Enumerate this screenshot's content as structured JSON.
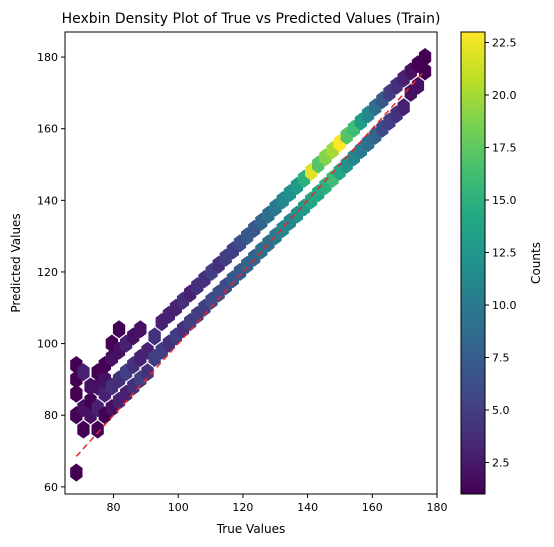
{
  "chart_data": {
    "type": "hexbin",
    "title": "Hexbin Density Plot of True vs Predicted Values (Train)",
    "xlabel": "True Values",
    "ylabel": "Predicted Values",
    "xlim": [
      65,
      180
    ],
    "ylim": [
      58,
      187
    ],
    "xticks": [
      80,
      100,
      120,
      140,
      160,
      180
    ],
    "yticks": [
      60,
      80,
      100,
      120,
      140,
      160,
      180
    ],
    "grid": false,
    "colormap": "viridis",
    "colorbar": {
      "label": "Counts",
      "range": [
        1,
        23
      ],
      "ticks": [
        "2.5",
        "5.0",
        "7.5",
        "10.0",
        "12.5",
        "15.0",
        "17.5",
        "20.0",
        "22.5"
      ],
      "tick_values": [
        2.5,
        5.0,
        7.5,
        10.0,
        12.5,
        15.0,
        17.5,
        20.0,
        22.5
      ]
    },
    "reference_line": {
      "style": "dashed",
      "color": "#e8262a",
      "x": [
        68.5,
        176
      ],
      "y": [
        68.5,
        176
      ]
    },
    "hex_size": 2.2,
    "cells": [
      [
        68.5,
        64,
        1
      ],
      [
        68.5,
        80,
        1
      ],
      [
        68.5,
        86,
        1
      ],
      [
        68.5,
        90,
        1
      ],
      [
        68.5,
        94,
        1
      ],
      [
        70.7,
        76,
        1
      ],
      [
        70.7,
        82,
        2
      ],
      [
        70.7,
        92,
        3
      ],
      [
        72.9,
        80,
        2
      ],
      [
        72.9,
        84,
        1
      ],
      [
        72.9,
        88,
        2
      ],
      [
        75.1,
        76,
        1
      ],
      [
        75.1,
        82,
        3
      ],
      [
        75.1,
        88,
        2
      ],
      [
        75.1,
        92,
        1
      ],
      [
        77.3,
        80,
        1
      ],
      [
        77.3,
        86,
        3
      ],
      [
        77.3,
        90,
        2
      ],
      [
        77.3,
        94,
        1
      ],
      [
        79.5,
        82,
        2
      ],
      [
        79.5,
        88,
        4
      ],
      [
        79.5,
        96,
        2
      ],
      [
        79.5,
        100,
        1
      ],
      [
        81.7,
        84,
        3
      ],
      [
        81.7,
        90,
        4
      ],
      [
        81.7,
        98,
        2
      ],
      [
        81.7,
        104,
        1
      ],
      [
        83.9,
        86,
        3
      ],
      [
        83.9,
        92,
        5
      ],
      [
        83.9,
        100,
        3
      ],
      [
        86.1,
        88,
        4
      ],
      [
        86.1,
        94,
        4
      ],
      [
        86.1,
        102,
        2
      ],
      [
        88.3,
        90,
        5
      ],
      [
        88.3,
        96,
        3
      ],
      [
        88.3,
        104,
        2
      ],
      [
        90.5,
        92,
        4
      ],
      [
        90.5,
        98,
        3
      ],
      [
        92.7,
        96,
        5
      ],
      [
        92.7,
        102,
        4
      ],
      [
        94.9,
        98,
        5
      ],
      [
        94.9,
        106,
        3
      ],
      [
        97.1,
        100,
        4
      ],
      [
        97.1,
        108,
        3
      ],
      [
        99.3,
        102,
        5
      ],
      [
        99.3,
        110,
        3
      ],
      [
        101.5,
        104,
        4
      ],
      [
        101.5,
        112,
        4
      ],
      [
        103.7,
        106,
        5
      ],
      [
        103.7,
        114,
        3
      ],
      [
        105.9,
        108,
        5
      ],
      [
        105.9,
        116,
        4
      ],
      [
        108.1,
        110,
        5
      ],
      [
        108.1,
        118,
        4
      ],
      [
        110.3,
        112,
        6
      ],
      [
        110.3,
        120,
        5
      ],
      [
        112.5,
        114,
        6
      ],
      [
        112.5,
        122,
        4
      ],
      [
        114.7,
        116,
        6
      ],
      [
        114.7,
        124,
        5
      ],
      [
        116.9,
        118,
        7
      ],
      [
        116.9,
        126,
        5
      ],
      [
        119.1,
        120,
        7
      ],
      [
        119.1,
        128,
        6
      ],
      [
        121.3,
        122,
        8
      ],
      [
        121.3,
        130,
        7
      ],
      [
        123.5,
        124,
        8
      ],
      [
        123.5,
        132,
        7
      ],
      [
        125.7,
        126,
        9
      ],
      [
        125.7,
        134,
        8
      ],
      [
        127.9,
        128,
        9
      ],
      [
        127.9,
        136,
        9
      ],
      [
        130.1,
        130,
        10
      ],
      [
        130.1,
        138,
        10
      ],
      [
        132.3,
        132,
        11
      ],
      [
        132.3,
        140,
        11
      ],
      [
        134.5,
        134,
        11
      ],
      [
        134.5,
        142,
        12
      ],
      [
        136.7,
        136,
        12
      ],
      [
        136.7,
        144,
        13
      ],
      [
        138.9,
        138,
        13
      ],
      [
        138.9,
        146,
        15
      ],
      [
        141.1,
        140,
        14
      ],
      [
        141.1,
        148,
        22
      ],
      [
        143.3,
        142,
        14
      ],
      [
        143.3,
        150,
        17
      ],
      [
        145.5,
        144,
        15
      ],
      [
        145.5,
        152,
        19
      ],
      [
        147.7,
        146,
        16
      ],
      [
        147.7,
        154,
        20
      ],
      [
        149.9,
        148,
        14
      ],
      [
        149.9,
        156,
        23
      ],
      [
        152.1,
        150,
        12
      ],
      [
        152.1,
        158,
        17
      ],
      [
        154.3,
        152,
        11
      ],
      [
        154.3,
        160,
        16
      ],
      [
        156.5,
        154,
        10
      ],
      [
        156.5,
        162,
        13
      ],
      [
        158.7,
        156,
        9
      ],
      [
        158.7,
        164,
        11
      ],
      [
        160.9,
        158,
        8
      ],
      [
        160.9,
        166,
        9
      ],
      [
        163.1,
        160,
        6
      ],
      [
        163.1,
        168,
        7
      ],
      [
        165.3,
        162,
        5
      ],
      [
        165.3,
        170,
        5
      ],
      [
        167.5,
        164,
        4
      ],
      [
        167.5,
        172,
        4
      ],
      [
        169.7,
        166,
        3
      ],
      [
        169.7,
        174,
        3
      ],
      [
        171.9,
        170,
        2
      ],
      [
        171.9,
        176,
        2
      ],
      [
        174.1,
        172,
        2
      ],
      [
        174.1,
        178,
        1
      ],
      [
        176.3,
        176,
        1
      ],
      [
        176.3,
        180,
        1
      ]
    ]
  }
}
